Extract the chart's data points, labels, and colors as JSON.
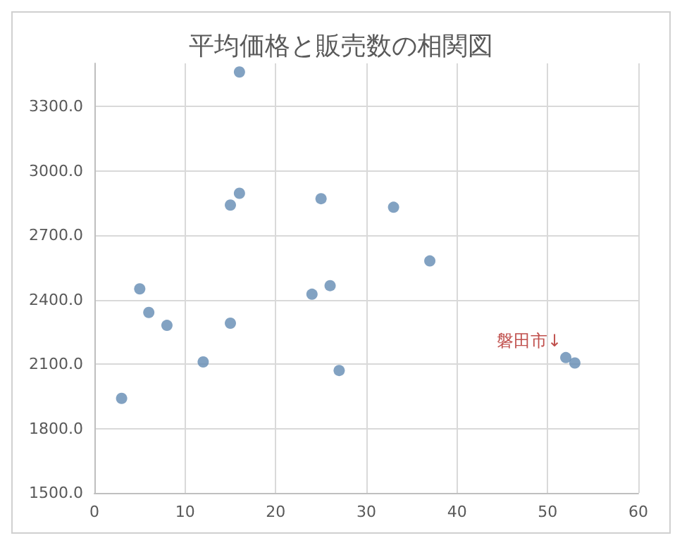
{
  "chart_data": {
    "type": "scatter",
    "title": "平均価格と販売数の相関図",
    "x": [
      3,
      5,
      6,
      8,
      12,
      15,
      15,
      16,
      16,
      24,
      25,
      26,
      27,
      33,
      37,
      52,
      53
    ],
    "values": [
      1940,
      2450,
      2340,
      2280,
      2110,
      2290,
      2840,
      2895,
      3460,
      2425,
      2870,
      2465,
      2070,
      2830,
      2580,
      2130,
      2105
    ],
    "color": "#638bb3",
    "xlim": [
      0,
      60
    ],
    "xticks": [
      0,
      10,
      20,
      30,
      40,
      50,
      60
    ],
    "ylim": [
      1500,
      3500
    ],
    "yticks": [
      {
        "value": 1500,
        "label": "1500.0"
      },
      {
        "value": 1800,
        "label": "1800.0"
      },
      {
        "value": 2100,
        "label": "2100.0"
      },
      {
        "value": 2400,
        "label": "2400.0"
      },
      {
        "value": 2700,
        "label": "2700.0"
      },
      {
        "value": 3000,
        "label": "3000.0"
      },
      {
        "value": 3300,
        "label": "3300.0"
      }
    ],
    "annotations": [
      {
        "text": "磐田市↓",
        "x": 52,
        "y": 2130
      }
    ],
    "grid": true,
    "marker": "circle"
  }
}
